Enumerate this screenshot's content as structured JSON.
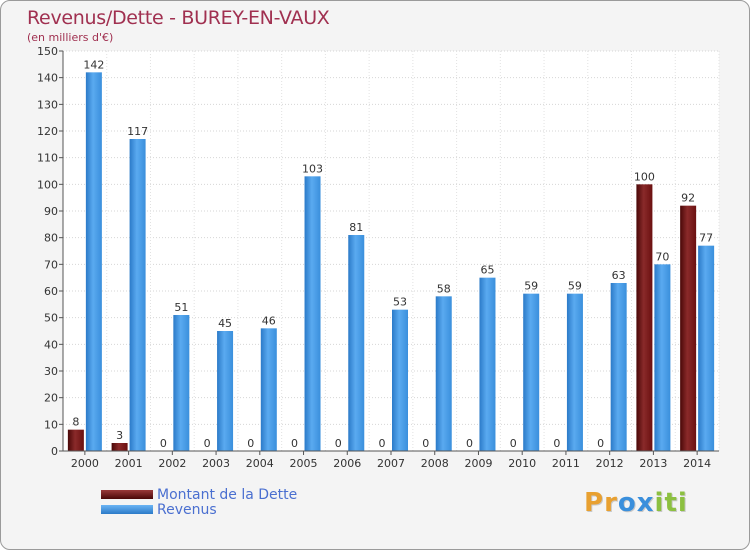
{
  "chart_data": {
    "type": "bar",
    "title": "Revenus/Dette - BUREY-EN-VAUX",
    "subtitle": "(en milliers d'€)",
    "xlabel": "",
    "ylabel": "",
    "ylim": [
      0,
      150
    ],
    "yticks": [
      "0",
      "10",
      "20",
      "30",
      "40",
      "50",
      "60",
      "70",
      "80",
      "90",
      "100",
      "110",
      "120",
      "130",
      "140",
      "150"
    ],
    "categories": [
      "2000",
      "2001",
      "2002",
      "2003",
      "2004",
      "2005",
      "2006",
      "2007",
      "2008",
      "2009",
      "2010",
      "2011",
      "2012",
      "2013",
      "2014"
    ],
    "series": [
      {
        "name": "Montant de la Dette",
        "color": "#6b0f0f",
        "values": [
          8,
          3,
          0,
          0,
          0,
          0,
          0,
          0,
          0,
          0,
          0,
          0,
          0,
          100,
          92
        ]
      },
      {
        "name": "Revenus",
        "color": "#3a8fdc",
        "values": [
          142,
          117,
          51,
          45,
          46,
          103,
          81,
          53,
          58,
          65,
          59,
          59,
          63,
          70,
          77
        ]
      }
    ],
    "grid": true,
    "legend": "bottom-left"
  },
  "logo": {
    "letters": [
      "P",
      "r",
      "o",
      "x",
      "i",
      "t",
      "i"
    ],
    "colors": [
      "#e8a030",
      "#e8a030",
      "#3a8fdc",
      "#3a8fdc",
      "#8cc040",
      "#8cc040",
      "#8cc040"
    ]
  }
}
